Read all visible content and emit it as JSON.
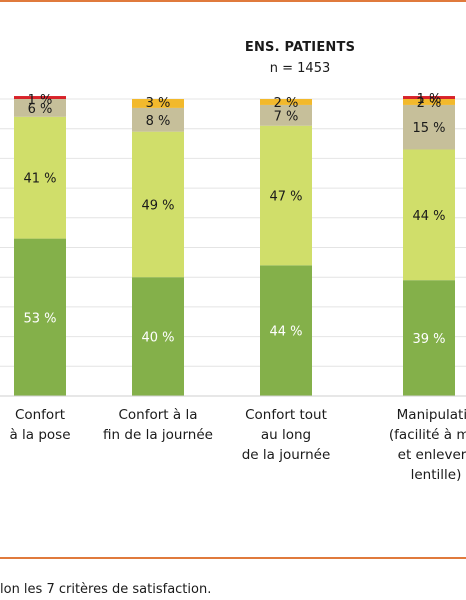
{
  "header": {
    "title": "ENS. PATIENTS",
    "subtitle": "n = 1453"
  },
  "footer": {
    "text": "lon les 7 critères de satisfaction."
  },
  "colors": {
    "dark_green": "#84b04a",
    "light_green": "#d0de6a",
    "beige": "#c6bf9a",
    "yellow": "#f2b92c",
    "red": "#d8232a",
    "purple": "#7a3a8f",
    "grid": "#e4e4e4",
    "rule": "#e07a3c"
  },
  "chart_data": {
    "type": "bar",
    "stacked": true,
    "grid": true,
    "ylim": [
      0,
      100
    ],
    "categories": [
      "Confort\nà la pose",
      "Confort à la\nfin de la journée",
      "Confort tout\nau long\nde la journée",
      "Manipulatio\n(facilité à met\net enlever l\nlentille)"
    ],
    "series": [
      {
        "color": "#84b04a",
        "values": [
          53,
          40,
          44,
          39
        ],
        "labels": [
          "53 %",
          "40 %",
          "44 %",
          "39 %"
        ],
        "label_color": "#ffffff"
      },
      {
        "color": "#d0de6a",
        "values": [
          41,
          49,
          47,
          44
        ],
        "labels": [
          "41 %",
          "49 %",
          "47 %",
          "44 %"
        ],
        "label_color": "#1a1a1a"
      },
      {
        "color": "#c6bf9a",
        "values": [
          6,
          8,
          7,
          15
        ],
        "labels": [
          "6 %",
          "8 %",
          "7 %",
          "15 %"
        ],
        "label_color": "#1a1a1a"
      },
      {
        "color": "#f2b92c",
        "values": [
          0,
          3,
          2,
          2
        ],
        "labels": [
          "",
          "3 %",
          "2 %",
          "2 %"
        ],
        "label_color": "#1a1a1a"
      },
      {
        "color": "#d8232a",
        "values": [
          1,
          0,
          0,
          1
        ],
        "labels": [
          "1 %",
          "",
          "",
          "1 %"
        ],
        "label_color": "#1a1a1a"
      }
    ]
  }
}
